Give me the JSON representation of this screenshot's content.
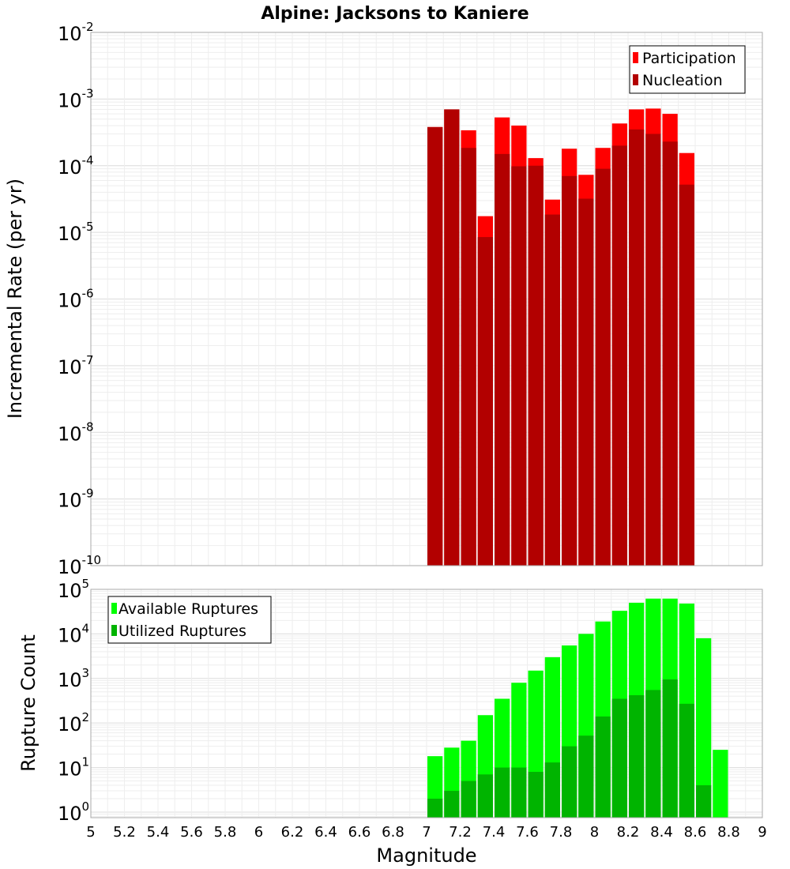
{
  "chart_data": [
    {
      "type": "bar",
      "title": "Alpine: Jacksons to Kaniere",
      "ylabel": "Incremental Rate (per yr)",
      "xlabel": "",
      "yscale": "log",
      "ylim": [
        1e-10,
        0.01
      ],
      "xlim": [
        5,
        9
      ],
      "legend_position": "top-right",
      "grid": true,
      "bin_centers": [
        7.05,
        7.15,
        7.25,
        7.35,
        7.45,
        7.55,
        7.65,
        7.75,
        7.85,
        7.95,
        8.05,
        8.15,
        8.25,
        8.35,
        8.45,
        8.55
      ],
      "series": [
        {
          "name": "Participation",
          "color": "#ff0000",
          "values": [
            0.00038,
            0.0007,
            0.00034,
            1.75e-05,
            0.00053,
            0.0004,
            0.00013,
            3.1e-05,
            0.00018,
            7.3e-05,
            0.000185,
            0.00043,
            0.0007,
            0.00072,
            0.0006,
            0.000155
          ]
        },
        {
          "name": "Nucleation",
          "color": "#b20000",
          "values": [
            0.00038,
            0.0007,
            0.000185,
            8.5e-06,
            0.00015,
            9.8e-05,
            0.0001,
            1.85e-05,
            7e-05,
            3.2e-05,
            9e-05,
            0.0002,
            0.00035,
            0.0003,
            0.00023,
            5.2e-05
          ]
        }
      ],
      "y_ticks": [
        {
          "base": "10",
          "exp": "-10",
          "value": 1e-10
        },
        {
          "base": "10",
          "exp": "-9",
          "value": 1e-09
        },
        {
          "base": "10",
          "exp": "-8",
          "value": 1e-08
        },
        {
          "base": "10",
          "exp": "-7",
          "value": 1e-07
        },
        {
          "base": "10",
          "exp": "-6",
          "value": 1e-06
        },
        {
          "base": "10",
          "exp": "-5",
          "value": 1e-05
        },
        {
          "base": "10",
          "exp": "-4",
          "value": 0.0001
        },
        {
          "base": "10",
          "exp": "-3",
          "value": 0.001
        },
        {
          "base": "10",
          "exp": "-2",
          "value": 0.01
        }
      ]
    },
    {
      "type": "bar",
      "title": "",
      "ylabel": "Rupture Count",
      "xlabel": "Magnitude",
      "yscale": "log",
      "ylim": [
        0.75,
        100000.0
      ],
      "xlim": [
        5,
        9
      ],
      "legend_position": "top-left",
      "grid": true,
      "bin_centers": [
        7.05,
        7.15,
        7.25,
        7.35,
        7.45,
        7.55,
        7.65,
        7.75,
        7.85,
        7.95,
        8.05,
        8.15,
        8.25,
        8.35,
        8.45,
        8.55,
        8.65,
        8.75
      ],
      "series": [
        {
          "name": "Available Ruptures",
          "color": "#00ff00",
          "values": [
            18,
            28,
            40,
            150,
            350,
            800,
            1500,
            3000,
            5500,
            10000,
            19000,
            33000,
            50000,
            62000,
            62000,
            48000,
            8000,
            25
          ]
        },
        {
          "name": "Utilized Ruptures",
          "color": "#00b400",
          "values": [
            2,
            3,
            5,
            7,
            10,
            10,
            8,
            13,
            30,
            52,
            140,
            350,
            420,
            550,
            950,
            270,
            4,
            0
          ]
        }
      ],
      "x_ticks": [
        "5",
        "5.2",
        "5.4",
        "5.6",
        "5.8",
        "6",
        "6.2",
        "6.4",
        "6.6",
        "6.8",
        "7",
        "7.2",
        "7.4",
        "7.6",
        "7.8",
        "8",
        "8.2",
        "8.4",
        "8.6",
        "8.8",
        "9"
      ],
      "y_ticks": [
        {
          "base": "10",
          "exp": "0",
          "value": 1
        },
        {
          "base": "10",
          "exp": "1",
          "value": 10
        },
        {
          "base": "10",
          "exp": "2",
          "value": 100
        },
        {
          "base": "10",
          "exp": "3",
          "value": 1000
        },
        {
          "base": "10",
          "exp": "4",
          "value": 10000
        },
        {
          "base": "10",
          "exp": "5",
          "value": 100000
        }
      ]
    }
  ]
}
